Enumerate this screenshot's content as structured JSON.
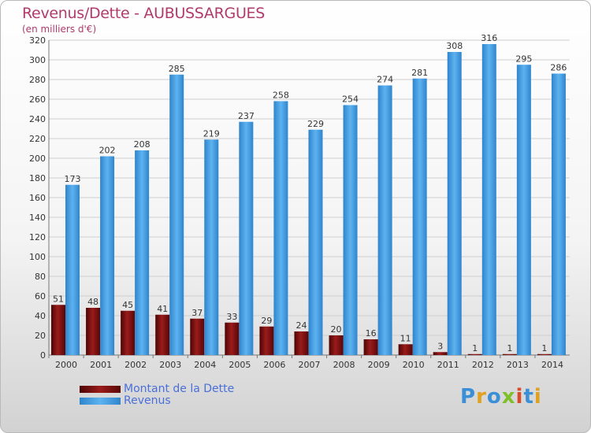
{
  "chart_data": {
    "type": "bar",
    "title": "Revenus/Dette - AUBUSSARGUES",
    "subtitle": "(en milliers d'€)",
    "xlabel": "",
    "ylabel": "",
    "ylim": [
      0,
      320
    ],
    "ytick_step": 20,
    "grid": true,
    "legend_position": "bottom-left",
    "categories": [
      "2000",
      "2001",
      "2002",
      "2003",
      "2004",
      "2005",
      "2006",
      "2007",
      "2008",
      "2009",
      "2010",
      "2011",
      "2012",
      "2013",
      "2014"
    ],
    "series": [
      {
        "name": "Montant de la Dette",
        "color": "#7a1010",
        "values": [
          51,
          48,
          45,
          41,
          37,
          33,
          29,
          24,
          20,
          16,
          11,
          3,
          1,
          1,
          1
        ]
      },
      {
        "name": "Revenus",
        "color": "#3d9ae0",
        "values": [
          173,
          202,
          208,
          285,
          219,
          237,
          258,
          229,
          254,
          274,
          281,
          308,
          316,
          295,
          286
        ]
      }
    ]
  },
  "legend": {
    "debt_label": "Montant de la Dette",
    "revenue_label": "Revenus"
  },
  "logo": {
    "letters": [
      "P",
      "r",
      "o",
      "x",
      "i",
      "t",
      "i"
    ],
    "colors": [
      "#3a8fd6",
      "#e0a020",
      "#3a8fd6",
      "#7fbf2a",
      "#d84a2a",
      "#3a8fd6",
      "#e0a020"
    ]
  }
}
